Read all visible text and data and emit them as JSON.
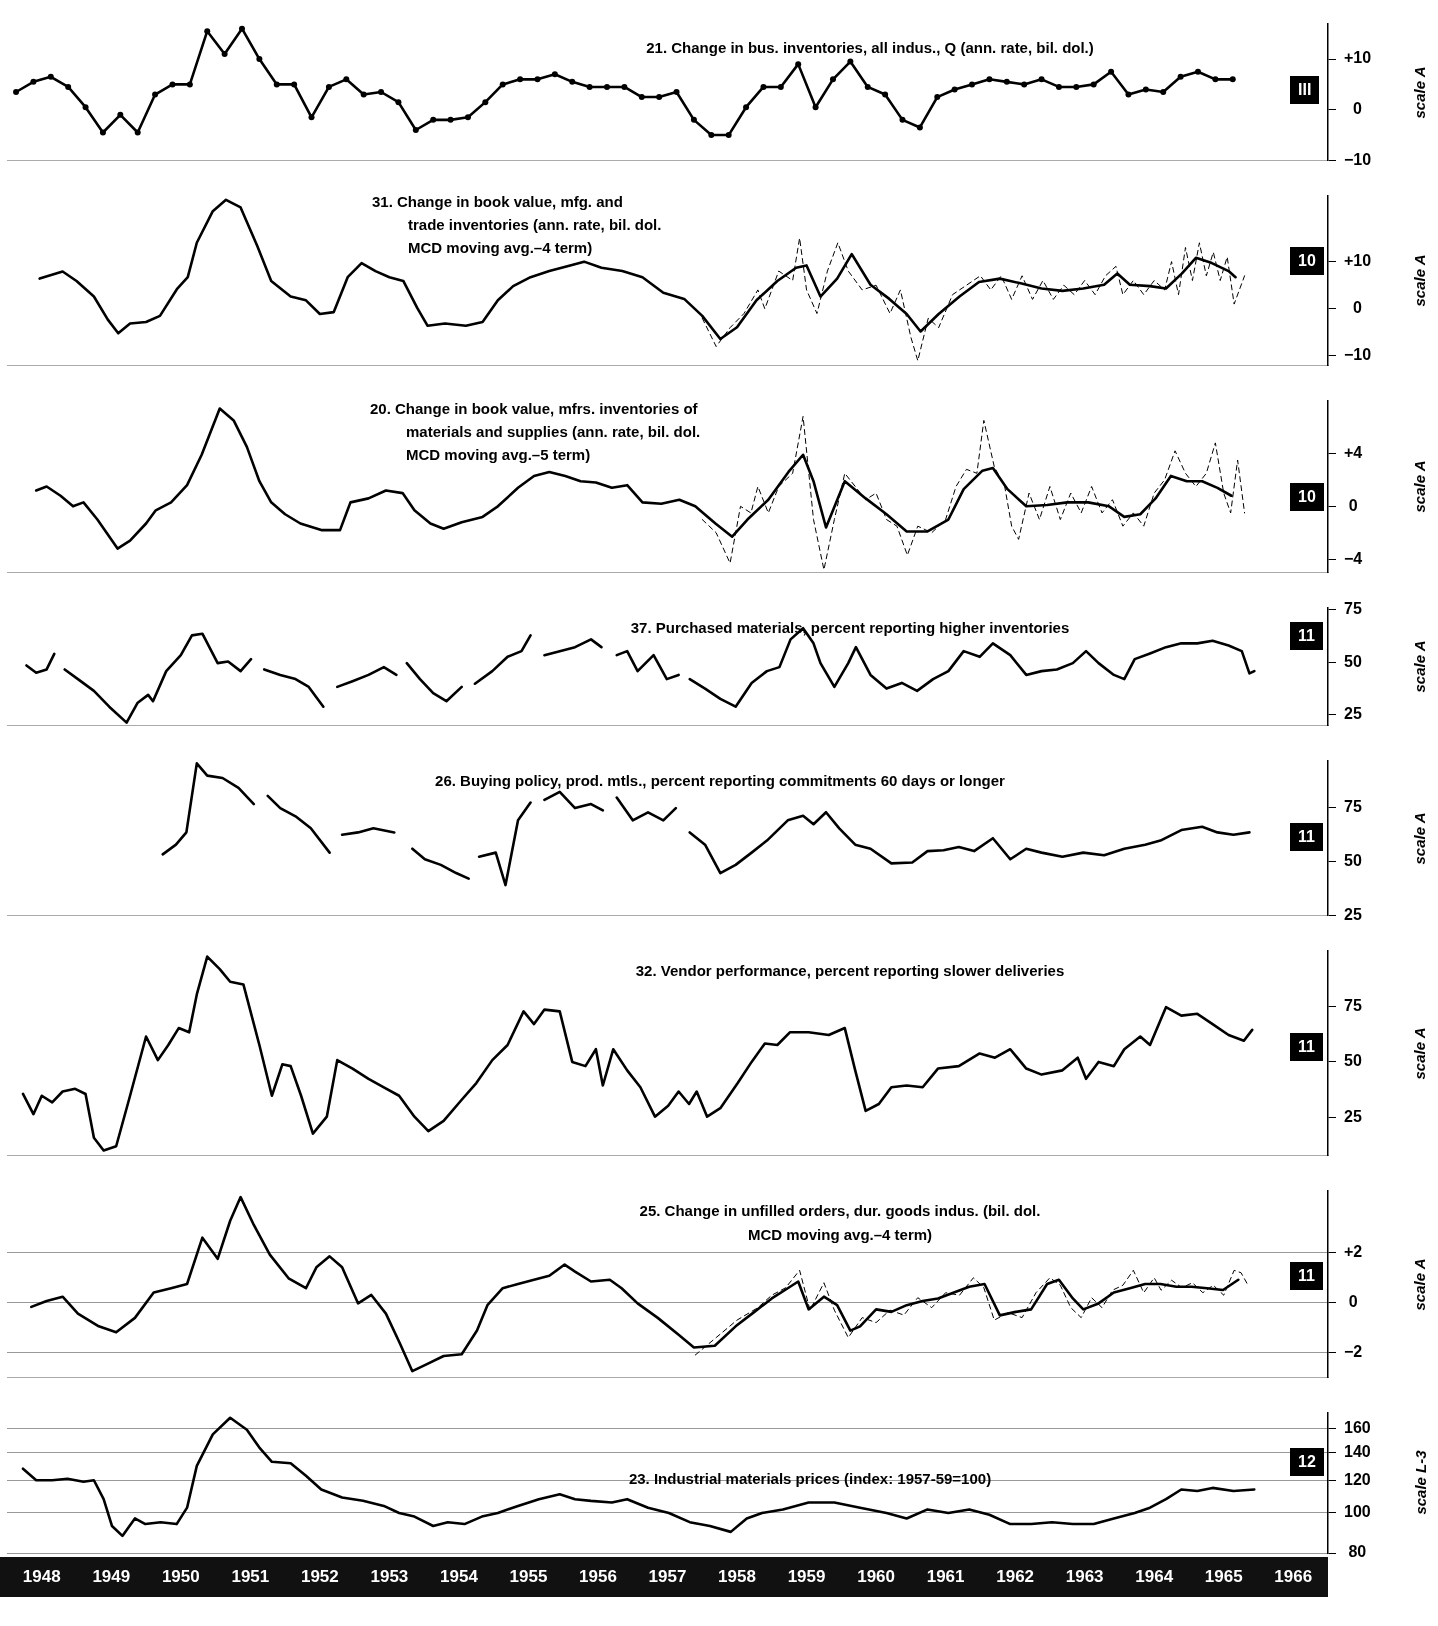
{
  "chart_data": [
    {
      "type": "line",
      "title": "21. Change in bus. inventories, all indus., Q (ann. rate, bil. dol.)",
      "annotations": [
        "III",
        "scale A"
      ],
      "marker": "circle",
      "tick_labels": "y",
      "grid": false,
      "xlim": [
        1948,
        1967
      ],
      "ylim": [
        -10,
        17
      ],
      "yticks": [
        {
          "value": 10,
          "label": "+10"
        },
        0,
        {
          "value": -10,
          "label": "−10"
        }
      ],
      "x": [
        1948.13,
        1948.38,
        1948.63,
        1948.88,
        1949.13,
        1949.38,
        1949.63,
        1949.88,
        1950.13,
        1950.38,
        1950.63,
        1950.88,
        1951.13,
        1951.38,
        1951.63,
        1951.88,
        1952.13,
        1952.38,
        1952.63,
        1952.88,
        1953.13,
        1953.38,
        1953.63,
        1953.88,
        1954.13,
        1954.38,
        1954.63,
        1954.88,
        1955.13,
        1955.38,
        1955.63,
        1955.88,
        1956.13,
        1956.38,
        1956.63,
        1956.88,
        1957.13,
        1957.38,
        1957.63,
        1957.88,
        1958.13,
        1958.38,
        1958.63,
        1958.88,
        1959.13,
        1959.38,
        1959.63,
        1959.88,
        1960.13,
        1960.38,
        1960.63,
        1960.88,
        1961.13,
        1961.38,
        1961.63,
        1961.88,
        1962.13,
        1962.38,
        1962.63,
        1962.88,
        1963.13,
        1963.38,
        1963.63,
        1963.88,
        1964.13,
        1964.38,
        1964.63,
        1964.88,
        1965.13,
        1965.38,
        1965.63
      ],
      "series": [
        {
          "color": "#000000",
          "values": [
            3.5,
            5.5,
            6.5,
            4.5,
            0.5,
            -4.5,
            -1,
            -4.5,
            3,
            5,
            5,
            15.5,
            11,
            16,
            10,
            5,
            5,
            -1.5,
            4.5,
            6,
            3,
            3.5,
            1.5,
            -4,
            -2,
            -2,
            -1.5,
            1.5,
            5,
            6,
            6,
            7,
            5.5,
            4.5,
            4.5,
            4.5,
            2.5,
            2.5,
            3.5,
            -2,
            -5,
            -5,
            0.5,
            4.5,
            4.5,
            9,
            0.5,
            6,
            9.5,
            4.5,
            3,
            -2,
            -3.5,
            2.5,
            4,
            5,
            6,
            5.5,
            5,
            6,
            4.5,
            4.5,
            5,
            7.5,
            3,
            4,
            3.5,
            6.5,
            7.5,
            6,
            6
          ]
        }
      ]
    },
    {
      "type": "line",
      "title": "31. Change in book value, mfg. and\ntrade inventories (ann. rate, bil. dol.\nMCD moving avg.–4 term)",
      "annotations": [
        "10",
        "scale A"
      ],
      "tick_labels": "y",
      "grid": false,
      "xlim": [
        1948,
        1967
      ],
      "ylim": [
        -12,
        24
      ],
      "yticks": [
        {
          "value": 10,
          "label": "+10"
        },
        0,
        {
          "value": -10,
          "label": "−10"
        }
      ],
      "series": [
        {
          "color": "#000000",
          "line_style": "dashed",
          "x": [
            1958.0,
            1958.2,
            1958.4,
            1958.6,
            1958.8,
            1958.9,
            1959.1,
            1959.3,
            1959.4,
            1959.5,
            1959.65,
            1959.8,
            1959.95,
            1960.1,
            1960.3,
            1960.5,
            1960.7,
            1960.85,
            1961.0,
            1961.1,
            1961.25,
            1961.4,
            1961.6,
            1961.8,
            1962.0,
            1962.15,
            1962.3,
            1962.45,
            1962.6,
            1962.75,
            1962.9,
            1963.05,
            1963.2,
            1963.35,
            1963.5,
            1963.65,
            1963.8,
            1963.95,
            1964.05,
            1964.2,
            1964.35,
            1964.5,
            1964.65,
            1964.75,
            1964.85,
            1964.95,
            1965.05,
            1965.15,
            1965.25,
            1965.35,
            1965.45,
            1965.55,
            1965.65,
            1965.8
          ],
          "values": [
            -2,
            -8,
            -4,
            -1,
            4,
            0,
            8,
            6,
            15,
            4,
            -1,
            8,
            14,
            8,
            4,
            5,
            -1,
            4,
            -6,
            -11,
            -2,
            -4,
            3,
            5,
            7,
            4,
            7,
            2,
            7,
            2,
            6,
            2,
            5,
            3,
            6,
            3,
            7,
            9,
            3,
            6,
            3,
            6,
            4,
            10,
            3,
            13,
            6,
            14,
            7,
            12,
            6,
            11,
            1,
            7
          ]
        },
        {
          "color": "#000000",
          "line_style": "solid",
          "x": [
            1948.47,
            1948.8,
            1949.0,
            1949.25,
            1949.45,
            1949.6,
            1949.77,
            1950.0,
            1950.2,
            1950.45,
            1950.6,
            1950.73,
            1950.96,
            1951.15,
            1951.36,
            1951.6,
            1951.8,
            1952.08,
            1952.3,
            1952.5,
            1952.7,
            1952.9,
            1953.1,
            1953.3,
            1953.5,
            1953.7,
            1953.9,
            1954.05,
            1954.3,
            1954.6,
            1954.84,
            1955.06,
            1955.28,
            1955.53,
            1955.8,
            1956.1,
            1956.3,
            1956.55,
            1956.85,
            1957.14,
            1957.44,
            1957.74,
            1958.0,
            1958.26,
            1958.5,
            1958.78,
            1959.08,
            1959.35,
            1959.5,
            1959.7,
            1959.94,
            1960.15,
            1960.42,
            1960.69,
            1960.94,
            1961.14,
            1961.4,
            1961.7,
            1961.98,
            1962.28,
            1962.58,
            1962.88,
            1963.18,
            1963.48,
            1963.78,
            1963.97,
            1964.15,
            1964.44,
            1964.67,
            1964.9,
            1965.1,
            1965.33,
            1965.57,
            1965.67
          ],
          "values": [
            6.4,
            7.9,
            5.9,
            2.6,
            -2.3,
            -5.2,
            -3.1,
            -2.8,
            -1.5,
            4.3,
            6.7,
            14,
            20.7,
            23.1,
            21.5,
            13.3,
            5.9,
            2.6,
            1.8,
            -1.1,
            -0.7,
            6.7,
            9.7,
            8,
            6.7,
            5.9,
            0.2,
            -3.6,
            -3.1,
            -3.6,
            -2.8,
            1.8,
            4.8,
            6.7,
            8,
            9.2,
            10,
            8.7,
            8,
            6.7,
            3.4,
            2.1,
            -1.5,
            -6.4,
            -3.9,
            1.8,
            5.9,
            8.7,
            9.2,
            2.6,
            6.4,
            11.6,
            5.1,
            2.1,
            -1.1,
            -4.8,
            -1.1,
            2.6,
            5.7,
            6.4,
            5.4,
            4.3,
            3.8,
            4.3,
            5.1,
            7.5,
            5.1,
            4.8,
            4.3,
            7.5,
            10.8,
            9.7,
            8,
            6.7
          ]
        }
      ]
    },
    {
      "type": "line",
      "title": "20. Change in book value, mfrs. inventories of\nmaterials and supplies (ann. rate, bil. dol.\nMCD moving avg.–5 term)",
      "annotations": [
        "10",
        "scale A"
      ],
      "tick_labels": "y",
      "grid": false,
      "xlim": [
        1948,
        1967
      ],
      "ylim": [
        -5,
        8
      ],
      "yticks": [
        {
          "value": 4,
          "label": "+4"
        },
        0,
        {
          "value": -4,
          "label": "−4"
        }
      ],
      "series": [
        {
          "color": "#000000",
          "line_style": "dashed",
          "x": [
            1958.0,
            1958.2,
            1958.4,
            1958.55,
            1958.7,
            1958.8,
            1958.95,
            1959.1,
            1959.3,
            1959.45,
            1959.6,
            1959.75,
            1959.9,
            1960.05,
            1960.2,
            1960.35,
            1960.5,
            1960.65,
            1960.8,
            1960.95,
            1961.1,
            1961.3,
            1961.5,
            1961.65,
            1961.8,
            1961.95,
            1962.05,
            1962.2,
            1962.35,
            1962.45,
            1962.55,
            1962.7,
            1962.85,
            1963.0,
            1963.15,
            1963.3,
            1963.45,
            1963.6,
            1963.75,
            1963.9,
            1964.05,
            1964.2,
            1964.35,
            1964.5,
            1964.65,
            1964.8,
            1964.95,
            1965.1,
            1965.25,
            1965.38,
            1965.5,
            1965.6,
            1965.7,
            1965.8
          ],
          "values": [
            -1,
            -2,
            -4.3,
            0,
            -0.5,
            1.5,
            -0.5,
            1.5,
            2.5,
            6.8,
            -1,
            -4.8,
            -1,
            2.5,
            1.5,
            0.5,
            1,
            -1,
            -1.5,
            -3.7,
            -1.5,
            -2,
            -1,
            1.5,
            2.8,
            2.5,
            6.5,
            3,
            1.5,
            -1.5,
            -2.5,
            1,
            -1,
            1.5,
            -1,
            1,
            -0.5,
            1.5,
            -0.5,
            0.5,
            -1.5,
            -0.5,
            -1.5,
            1,
            2,
            4.2,
            2.5,
            1.5,
            2.5,
            4.8,
            1,
            -0.5,
            3.5,
            -0.5
          ]
        },
        {
          "color": "#000000",
          "line_style": "solid",
          "x": [
            1948.42,
            1948.57,
            1948.77,
            1948.95,
            1949.1,
            1949.3,
            1949.59,
            1949.77,
            1950.0,
            1950.14,
            1950.36,
            1950.59,
            1950.8,
            1951.06,
            1951.26,
            1951.45,
            1951.63,
            1951.8,
            1952.0,
            1952.22,
            1952.52,
            1952.79,
            1952.94,
            1953.2,
            1953.45,
            1953.69,
            1953.86,
            1954.09,
            1954.28,
            1954.54,
            1954.84,
            1955.06,
            1955.35,
            1955.58,
            1955.8,
            1956.03,
            1956.25,
            1956.47,
            1956.7,
            1956.92,
            1957.14,
            1957.41,
            1957.67,
            1957.9,
            1958.19,
            1958.43,
            1958.65,
            1958.95,
            1959.24,
            1959.45,
            1959.6,
            1959.78,
            1960.05,
            1960.35,
            1960.65,
            1960.94,
            1961.24,
            1961.54,
            1961.76,
            1962.03,
            1962.18,
            1962.39,
            1962.66,
            1962.96,
            1963.25,
            1963.55,
            1963.85,
            1964.07,
            1964.3,
            1964.52,
            1964.74,
            1964.97,
            1965.19,
            1965.41,
            1965.61
          ],
          "values": [
            1.2,
            1.5,
            0.8,
            0,
            0.3,
            -1,
            -3.2,
            -2.6,
            -1.3,
            -0.3,
            0.3,
            1.6,
            3.9,
            7.4,
            6.5,
            4.5,
            1.9,
            0.3,
            -0.6,
            -1.3,
            -1.8,
            -1.8,
            0.3,
            0.6,
            1.2,
            1,
            -0.3,
            -1.3,
            -1.7,
            -1.2,
            -0.8,
            0,
            1.4,
            2.3,
            2.6,
            2.3,
            1.9,
            1.8,
            1.4,
            1.6,
            0.3,
            0.2,
            0.5,
            0,
            -1.3,
            -2.3,
            -1,
            0.5,
            2.6,
            3.9,
            1.9,
            -1.6,
            1.9,
            0.6,
            -0.6,
            -1.9,
            -1.9,
            -1,
            1.3,
            2.7,
            2.9,
            1.3,
            0,
            0.1,
            0.3,
            0.3,
            0,
            -0.8,
            -0.6,
            0.6,
            2.3,
            1.9,
            1.9,
            1.4,
            0.8
          ]
        }
      ]
    },
    {
      "type": "line",
      "title": "37. Purchased materials, percent reporting higher inventories",
      "annotations": [
        "11",
        "scale A"
      ],
      "tick_labels": "y",
      "grid": false,
      "xlim": [
        1948,
        1967
      ],
      "ylim": [
        20,
        76
      ],
      "yticks": [
        75,
        50,
        25
      ],
      "x": [
        1948.28,
        1948.42,
        1948.57,
        1948.68,
        1948.75,
        1948.83,
        1949.02,
        1949.25,
        1949.47,
        1949.72,
        1949.88,
        1950.03,
        1950.1,
        1950.29,
        1950.5,
        1950.66,
        1950.81,
        1951.03,
        1951.18,
        1951.36,
        1951.51,
        1951.6,
        1951.7,
        1951.93,
        1952.15,
        1952.34,
        1952.55,
        1952.65,
        1952.75,
        1952.97,
        1953.2,
        1953.42,
        1953.6,
        1953.68,
        1953.75,
        1953.94,
        1954.13,
        1954.32,
        1954.54,
        1954.64,
        1954.73,
        1954.98,
        1955.2,
        1955.4,
        1955.53,
        1955.63,
        1955.73,
        1955.95,
        1956.17,
        1956.4,
        1956.55,
        1956.66,
        1956.77,
        1956.92,
        1957.07,
        1957.3,
        1957.49,
        1957.66,
        1957.74,
        1957.82,
        1958.04,
        1958.26,
        1958.48,
        1958.71,
        1958.93,
        1959.11,
        1959.27,
        1959.45,
        1959.6,
        1959.7,
        1959.9,
        1960.1,
        1960.21,
        1960.42,
        1960.65,
        1960.87,
        1961.09,
        1961.32,
        1961.54,
        1961.76,
        1961.99,
        1962.18,
        1962.43,
        1962.66,
        1962.88,
        1963.1,
        1963.33,
        1963.52,
        1963.7,
        1963.92,
        1964.07,
        1964.22,
        1964.44,
        1964.67,
        1964.89,
        1965.12,
        1965.34,
        1965.57,
        1965.76,
        1965.87,
        1965.94
      ],
      "series": [
        {
          "color": "#000000",
          "values": [
            48.5,
            45,
            46.6,
            54,
            null,
            46.6,
            42,
            36.4,
            28.9,
            21.3,
            30.8,
            34.5,
            31.5,
            45.8,
            53.4,
            62.8,
            63.6,
            49.6,
            50.4,
            45.8,
            51.5,
            null,
            46.6,
            44,
            42,
            38.3,
            28.9,
            null,
            38.3,
            41,
            44,
            47.7,
            44,
            null,
            49.6,
            42,
            35.3,
            31.5,
            38.3,
            null,
            39.8,
            45.8,
            52.6,
            55.3,
            62.8,
            null,
            53.4,
            55.3,
            57.2,
            60.9,
            57.2,
            null,
            53.4,
            55.3,
            45.8,
            53.4,
            42,
            44,
            null,
            42,
            37.5,
            32.6,
            28.9,
            40.2,
            45.8,
            47.7,
            60.9,
            66.2,
            59,
            49.6,
            38.3,
            49.6,
            57.2,
            44,
            37.5,
            40.2,
            36.4,
            42,
            45.8,
            55.3,
            52.6,
            59,
            53.4,
            44,
            45.8,
            46.6,
            49.6,
            55.3,
            49.6,
            44,
            42,
            51.5,
            54.2,
            57.2,
            59,
            59,
            60.2,
            58,
            55.3,
            44.7,
            45.8
          ]
        }
      ]
    },
    {
      "type": "line",
      "title": "26. Buying policy, prod. mtls., percent reporting commitments 60 days or longer",
      "annotations": [
        "11",
        "scale A"
      ],
      "tick_labels": "y",
      "grid": false,
      "xlim": [
        1948,
        1967
      ],
      "ylim": [
        25,
        97
      ],
      "yticks": [
        75,
        50,
        25
      ],
      "x": [
        1950.24,
        1950.43,
        1950.58,
        1950.73,
        1950.88,
        1951.1,
        1951.33,
        1951.55,
        1951.65,
        1951.75,
        1951.93,
        1952.15,
        1952.37,
        1952.64,
        1952.73,
        1952.82,
        1953.05,
        1953.27,
        1953.57,
        1953.7,
        1953.83,
        1954.01,
        1954.24,
        1954.46,
        1954.64,
        1954.72,
        1954.79,
        1955.03,
        1955.17,
        1955.35,
        1955.53,
        1955.63,
        1955.73,
        1955.95,
        1956.17,
        1956.4,
        1956.57,
        1956.67,
        1956.77,
        1957.0,
        1957.22,
        1957.44,
        1957.62,
        1957.72,
        1957.82,
        1958.04,
        1958.26,
        1958.48,
        1958.71,
        1958.93,
        1959.23,
        1959.45,
        1959.6,
        1959.78,
        1959.97,
        1960.2,
        1960.42,
        1960.72,
        1961.02,
        1961.24,
        1961.47,
        1961.69,
        1961.91,
        1962.18,
        1962.43,
        1962.66,
        1962.88,
        1963.18,
        1963.48,
        1963.78,
        1964.07,
        1964.37,
        1964.59,
        1964.89,
        1965.19,
        1965.41,
        1965.64,
        1965.87
      ],
      "series": [
        {
          "color": "#000000",
          "values": [
            53.4,
            57.9,
            63.6,
            95.7,
            90,
            88.9,
            84.3,
            76.8,
            null,
            80.6,
            74.9,
            71.1,
            65.5,
            54.2,
            null,
            62.5,
            63.6,
            65.5,
            63.6,
            null,
            56,
            51.1,
            48.5,
            44.7,
            42.1,
            null,
            52.3,
            54.2,
            39.1,
            69.2,
            77.5,
            null,
            78.7,
            82.5,
            74.9,
            76.8,
            73.8,
            null,
            79.8,
            69.2,
            72.9,
            69.2,
            74.9,
            null,
            63.6,
            57.9,
            44.7,
            48.5,
            54.2,
            59.8,
            69.2,
            71.3,
            67.4,
            73,
            65.5,
            57.9,
            56,
            49.2,
            49.6,
            54.9,
            55.3,
            56.8,
            54.9,
            60.9,
            51.1,
            56,
            54.2,
            52.3,
            54.2,
            53,
            56,
            57.9,
            59.8,
            64.7,
            66.2,
            63.6,
            62.5,
            63.6
          ]
        }
      ]
    },
    {
      "type": "line",
      "title": "32. Vendor performance, percent reporting slower deliveries",
      "annotations": [
        "11",
        "scale A"
      ],
      "tick_labels": "y",
      "grid": false,
      "xlim": [
        1948,
        1967
      ],
      "ylim": [
        8,
        100
      ],
      "yticks": [
        75,
        50,
        25
      ],
      "x": [
        1948.23,
        1948.38,
        1948.5,
        1948.65,
        1948.8,
        1948.98,
        1949.13,
        1949.25,
        1949.39,
        1949.57,
        1949.77,
        1950.0,
        1950.17,
        1950.32,
        1950.47,
        1950.62,
        1950.73,
        1950.88,
        1951.06,
        1951.21,
        1951.4,
        1951.63,
        1951.81,
        1951.96,
        1952.08,
        1952.23,
        1952.4,
        1952.6,
        1952.75,
        1952.97,
        1953.2,
        1953.42,
        1953.64,
        1953.86,
        1954.06,
        1954.28,
        1954.54,
        1954.75,
        1954.98,
        1955.2,
        1955.43,
        1955.58,
        1955.73,
        1955.95,
        1956.13,
        1956.32,
        1956.47,
        1956.57,
        1956.72,
        1956.92,
        1957.11,
        1957.32,
        1957.51,
        1957.66,
        1957.81,
        1957.92,
        1958.07,
        1958.26,
        1958.51,
        1958.71,
        1958.9,
        1959.08,
        1959.26,
        1959.53,
        1959.82,
        1960.05,
        1960.2,
        1960.35,
        1960.54,
        1960.72,
        1960.94,
        1961.17,
        1961.39,
        1961.69,
        1961.99,
        1962.21,
        1962.43,
        1962.66,
        1962.88,
        1963.18,
        1963.4,
        1963.52,
        1963.7,
        1963.92,
        1964.07,
        1964.3,
        1964.44,
        1964.67,
        1964.89,
        1965.12,
        1965.34,
        1965.57,
        1965.79,
        1965.91
      ],
      "series": [
        {
          "color": "#000000",
          "values": [
            35.6,
            26.5,
            34.8,
            31.8,
            36.7,
            37.9,
            35.6,
            15.9,
            10.2,
            12.1,
            34.8,
            61.4,
            50.8,
            57.6,
            65.2,
            63.3,
            80.3,
            97.3,
            91.7,
            86,
            84.8,
            57.6,
            34.8,
            48.9,
            48.1,
            34.8,
            17.8,
            25.4,
            50.8,
            47,
            42.4,
            38.6,
            34.8,
            25.4,
            18.9,
            23.5,
            33,
            40.5,
            50.8,
            57.6,
            72.7,
            67,
            73.5,
            72.7,
            50,
            48.1,
            55.7,
            39.4,
            55.7,
            46.2,
            38.6,
            25.4,
            30.3,
            36.7,
            31.1,
            36.7,
            25.4,
            29.2,
            40.5,
            50,
            58.3,
            57.6,
            63.3,
            63.3,
            62.1,
            65.2,
            46.2,
            28,
            31.1,
            38.6,
            39.4,
            38.6,
            47,
            48.1,
            53.8,
            51.9,
            55.7,
            47,
            44.3,
            46.2,
            51.9,
            42.4,
            50,
            48.1,
            55.7,
            61.4,
            57.6,
            74.6,
            70.8,
            71.6,
            67,
            62.1,
            59.5,
            64.4
          ]
        }
      ]
    },
    {
      "type": "line",
      "title": "25. Change in unfilled orders, dur. goods indus. (bil. dol.\nMCD moving avg.–4 term)",
      "annotations": [
        "11",
        "scale A"
      ],
      "tick_labels": "y",
      "grid": "y",
      "xlim": [
        1948,
        1967
      ],
      "ylim": [
        -3,
        4.5
      ],
      "yticks": [
        {
          "value": 2,
          "label": "+2"
        },
        0,
        {
          "value": -2,
          "label": "−2"
        }
      ],
      "series": [
        {
          "color": "#000000",
          "line_style": "dashed",
          "x": [
            1957.9,
            1958.2,
            1958.5,
            1958.8,
            1959.0,
            1959.2,
            1959.4,
            1959.55,
            1959.75,
            1959.9,
            1960.1,
            1960.3,
            1960.5,
            1960.7,
            1960.9,
            1961.1,
            1961.3,
            1961.5,
            1961.7,
            1961.9,
            1962.05,
            1962.2,
            1962.4,
            1962.6,
            1962.8,
            1963.0,
            1963.15,
            1963.3,
            1963.45,
            1963.6,
            1963.75,
            1963.9,
            1964.05,
            1964.2,
            1964.35,
            1964.5,
            1964.6,
            1964.75,
            1964.9,
            1965.05,
            1965.2,
            1965.35,
            1965.5,
            1965.65,
            1965.75,
            1965.85
          ],
          "values": [
            -2.1,
            -1.4,
            -0.7,
            -0.2,
            0.3,
            0.6,
            1.3,
            -0.3,
            0.8,
            -0.3,
            -1.4,
            -0.6,
            -0.8,
            -0.3,
            -0.5,
            0.2,
            -0.2,
            0.4,
            0.3,
            1,
            0.6,
            -0.7,
            -0.4,
            -0.6,
            0.4,
            1,
            0.7,
            -0.2,
            -0.6,
            0.2,
            -0.2,
            0.5,
            0.7,
            1.3,
            0.4,
            1,
            0.5,
            0.9,
            0.6,
            0.8,
            0.4,
            0.7,
            0.3,
            1.3,
            1.2,
            0.7
          ]
        },
        {
          "color": "#000000",
          "line_style": "solid",
          "x": [
            1948.35,
            1948.57,
            1948.8,
            1949.02,
            1949.32,
            1949.57,
            1949.84,
            1950.11,
            1950.36,
            1950.59,
            1950.81,
            1951.03,
            1951.21,
            1951.36,
            1951.55,
            1951.78,
            1952.05,
            1952.3,
            1952.45,
            1952.64,
            1952.82,
            1953.05,
            1953.24,
            1953.45,
            1953.65,
            1953.83,
            1954.04,
            1954.28,
            1954.54,
            1954.76,
            1954.91,
            1955.13,
            1955.35,
            1955.58,
            1955.8,
            1956.02,
            1956.17,
            1956.4,
            1956.67,
            1956.84,
            1957.07,
            1957.36,
            1957.66,
            1957.88,
            1958.18,
            1958.48,
            1958.75,
            1959.0,
            1959.23,
            1959.38,
            1959.53,
            1959.75,
            1959.94,
            1960.13,
            1960.27,
            1960.5,
            1960.72,
            1960.94,
            1961.17,
            1961.39,
            1961.62,
            1961.84,
            1962.06,
            1962.28,
            1962.51,
            1962.73,
            1962.96,
            1963.13,
            1963.33,
            1963.48,
            1963.7,
            1963.92,
            1964.15,
            1964.37,
            1964.59,
            1964.82,
            1965.04,
            1965.26,
            1965.49,
            1965.71
          ],
          "values": [
            -0.17,
            0.07,
            0.24,
            -0.44,
            -0.95,
            -1.19,
            -0.61,
            0.41,
            0.58,
            0.75,
            2.61,
            1.76,
            3.29,
            4.24,
            3.12,
            1.93,
            0.98,
            0.58,
            1.42,
            1.86,
            1.42,
            -0.03,
            0.31,
            -0.44,
            -1.63,
            -2.75,
            -2.47,
            -2.14,
            -2.07,
            -1.12,
            -0.1,
            0.58,
            0.75,
            0.92,
            1.08,
            1.53,
            1.25,
            0.85,
            0.92,
            0.58,
            -0.03,
            -0.61,
            -1.29,
            -1.8,
            -1.73,
            -0.95,
            -0.37,
            0.17,
            0.58,
            0.85,
            -0.27,
            0.24,
            -0.1,
            -1.12,
            -0.95,
            -0.27,
            -0.37,
            -0.1,
            0.07,
            0.17,
            0.41,
            0.64,
            0.75,
            -0.51,
            -0.37,
            -0.27,
            0.75,
            0.92,
            0.17,
            -0.27,
            -0.03,
            0.41,
            0.58,
            0.75,
            0.75,
            0.64,
            0.64,
            0.58,
            0.51,
            0.92
          ]
        }
      ]
    },
    {
      "type": "line",
      "title": "23. Industrial materials prices (index: 1957-59=100)",
      "annotations": [
        "12",
        "scale L-3"
      ],
      "log": "y",
      "grid": "y",
      "xlim": [
        1948,
        1967
      ],
      "ylim": [
        80,
        175
      ],
      "yticks": [
        80,
        100,
        120,
        140,
        160
      ],
      "xticks": [
        {
          "value": 1948.5,
          "label": "1948"
        },
        {
          "value": 1949.5,
          "label": "1949"
        },
        {
          "value": 1950.5,
          "label": "1950"
        },
        {
          "value": 1951.5,
          "label": "1951"
        },
        {
          "value": 1952.5,
          "label": "1952"
        },
        {
          "value": 1953.5,
          "label": "1953"
        },
        {
          "value": 1954.5,
          "label": "1954"
        },
        {
          "value": 1955.5,
          "label": "1955"
        },
        {
          "value": 1956.5,
          "label": "1956"
        },
        {
          "value": 1957.5,
          "label": "1957"
        },
        {
          "value": 1958.5,
          "label": "1958"
        },
        {
          "value": 1959.5,
          "label": "1959"
        },
        {
          "value": 1960.5,
          "label": "1960"
        },
        {
          "value": 1961.5,
          "label": "1961"
        },
        {
          "value": 1962.5,
          "label": "1962"
        },
        {
          "value": 1963.5,
          "label": "1963"
        },
        {
          "value": 1964.5,
          "label": "1964"
        },
        {
          "value": 1965.5,
          "label": "1965"
        },
        {
          "value": 1966.5,
          "label": "1966"
        }
      ],
      "x": [
        1948.23,
        1948.42,
        1948.65,
        1948.87,
        1949.1,
        1949.25,
        1949.39,
        1949.51,
        1949.66,
        1949.84,
        1949.99,
        1950.21,
        1950.44,
        1950.59,
        1950.73,
        1950.96,
        1951.21,
        1951.45,
        1951.63,
        1951.81,
        1952.08,
        1952.3,
        1952.52,
        1952.82,
        1953.12,
        1953.42,
        1953.64,
        1953.86,
        1954.13,
        1954.34,
        1954.58,
        1954.83,
        1955.06,
        1955.35,
        1955.65,
        1955.95,
        1956.17,
        1956.4,
        1956.7,
        1956.92,
        1957.22,
        1957.52,
        1957.82,
        1958.11,
        1958.41,
        1958.64,
        1958.86,
        1959.16,
        1959.53,
        1959.9,
        1960.27,
        1960.65,
        1960.94,
        1961.24,
        1961.54,
        1961.84,
        1962.13,
        1962.43,
        1962.73,
        1963.03,
        1963.33,
        1963.63,
        1963.92,
        1964.22,
        1964.44,
        1964.67,
        1964.89,
        1965.12,
        1965.34,
        1965.64,
        1965.94
      ],
      "series": [
        {
          "color": "#000000",
          "values": [
            128,
            120,
            120,
            121,
            119,
            120,
            108,
            93,
            88,
            97,
            94,
            95,
            94,
            103,
            130,
            155,
            170,
            159,
            144,
            133,
            132,
            123,
            114,
            109,
            107,
            104,
            100,
            98,
            93,
            95,
            94,
            98,
            100,
            104,
            108,
            111,
            108,
            107,
            106,
            108,
            103,
            100,
            95,
            93,
            90,
            97,
            100,
            102,
            106,
            106,
            103,
            100,
            97,
            102,
            100,
            102,
            99,
            94,
            94,
            95,
            94,
            94,
            97,
            100,
            103,
            108,
            114,
            113,
            115,
            113,
            114
          ]
        }
      ]
    }
  ]
}
